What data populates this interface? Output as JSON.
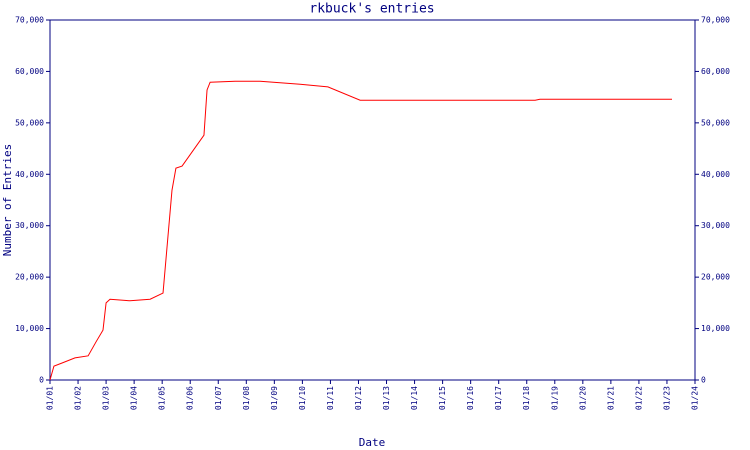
{
  "chart_data": {
    "type": "line",
    "title": "rkbuck's entries",
    "x_label": "Date",
    "y_label": "Number of Entries",
    "x": [
      1.0,
      1.14,
      1.43,
      1.89,
      2.36,
      2.64,
      2.89,
      3.0,
      3.14,
      3.85,
      4.57,
      5.03,
      5.35,
      5.49,
      5.71,
      6.49,
      6.6,
      6.71,
      7.6,
      8.49,
      9.92,
      10.91,
      12.06,
      13.48,
      18.3,
      18.47,
      23.18
    ],
    "values": [
      0,
      2700,
      3300,
      4300,
      4700,
      7400,
      9700,
      15000,
      15700,
      15400,
      15700,
      16900,
      36900,
      41200,
      41600,
      47600,
      56400,
      57900,
      58100,
      58100,
      57500,
      57000,
      54400,
      54400,
      54400,
      54600,
      54600
    ],
    "color": "#ff0000",
    "xlim": [
      1,
      24
    ],
    "xticks": [
      {
        "value": 1,
        "label": "01/01"
      },
      {
        "value": 2,
        "label": "01/02"
      },
      {
        "value": 3,
        "label": "01/03"
      },
      {
        "value": 4,
        "label": "01/04"
      },
      {
        "value": 5,
        "label": "01/05"
      },
      {
        "value": 6,
        "label": "01/06"
      },
      {
        "value": 7,
        "label": "01/07"
      },
      {
        "value": 8,
        "label": "01/08"
      },
      {
        "value": 9,
        "label": "01/09"
      },
      {
        "value": 10,
        "label": "01/10"
      },
      {
        "value": 11,
        "label": "01/11"
      },
      {
        "value": 12,
        "label": "01/12"
      },
      {
        "value": 13,
        "label": "01/13"
      },
      {
        "value": 14,
        "label": "01/14"
      },
      {
        "value": 15,
        "label": "01/15"
      },
      {
        "value": 16,
        "label": "01/16"
      },
      {
        "value": 17,
        "label": "01/17"
      },
      {
        "value": 18,
        "label": "01/18"
      },
      {
        "value": 19,
        "label": "01/19"
      },
      {
        "value": 20,
        "label": "01/20"
      },
      {
        "value": 21,
        "label": "01/21"
      },
      {
        "value": 22,
        "label": "01/22"
      },
      {
        "value": 23,
        "label": "01/23"
      },
      {
        "value": 24,
        "label": "01/24"
      }
    ],
    "ylim": [
      0,
      70000
    ],
    "yticks": [
      0,
      {
        "value": 10000,
        "label": "10,000"
      },
      {
        "value": 20000,
        "label": "20,000"
      },
      {
        "value": 30000,
        "label": "30,000"
      },
      {
        "value": 40000,
        "label": "40,000"
      },
      {
        "value": 50000,
        "label": "50,000"
      },
      {
        "value": 60000,
        "label": "60,000"
      },
      {
        "value": 70000,
        "label": "70,000"
      }
    ],
    "y2lim": [
      0,
      70000
    ],
    "y2ticks": [
      0,
      {
        "value": 10000,
        "label": "10,000"
      },
      {
        "value": 20000,
        "label": "20,000"
      },
      {
        "value": 30000,
        "label": "30,000"
      },
      {
        "value": 40000,
        "label": "40,000"
      },
      {
        "value": 50000,
        "label": "50,000"
      },
      {
        "value": 60000,
        "label": "60,000"
      },
      {
        "value": 70000,
        "label": "70,000"
      }
    ],
    "grid": false
  }
}
